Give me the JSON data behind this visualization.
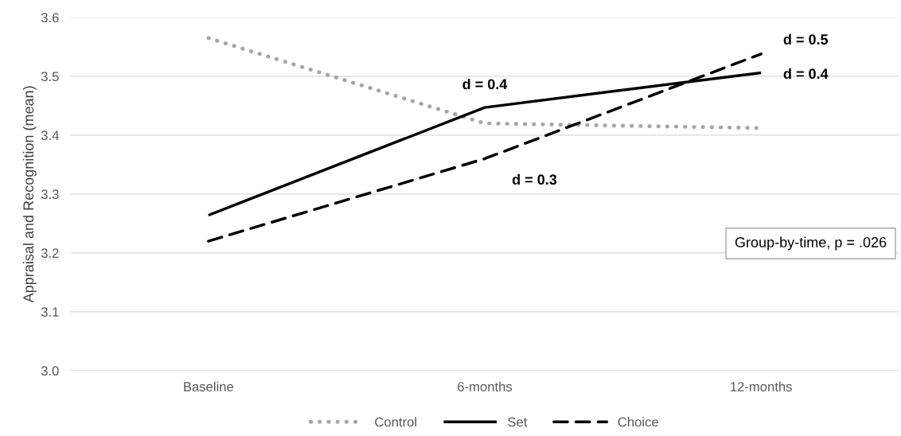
{
  "chart_data": {
    "type": "line",
    "ylabel": "Appraisal and Recognition (mean)",
    "categories": [
      "Baseline",
      "6-months",
      "12-months"
    ],
    "series": [
      {
        "name": "Control",
        "color": "#a6a6a6",
        "line_style": "dotted",
        "values": [
          3.565,
          3.42,
          3.412
        ]
      },
      {
        "name": "Set",
        "color": "#000000",
        "line_style": "solid",
        "values": [
          3.264,
          3.447,
          3.506
        ]
      },
      {
        "name": "Choice",
        "color": "#000000",
        "line_style": "dashed",
        "values": [
          3.22,
          3.36,
          3.538
        ]
      }
    ],
    "ylim": [
      3.0,
      3.6
    ],
    "yticks": [
      {
        "value": 3.0,
        "label": "3.0"
      },
      3.1,
      3.2,
      3.3,
      3.4,
      3.5,
      3.6
    ],
    "grid": "y",
    "legend": "bottom",
    "marker": "none",
    "annotations": [
      {
        "text": "d = 0.4",
        "x": "6-months",
        "y": 3.447
      },
      {
        "text": "d = 0.3",
        "x": "6-months",
        "y": 3.36
      },
      {
        "text": "d = 0.5",
        "x": "12-months",
        "y": 3.538
      },
      {
        "text": "d = 0.4",
        "x": "12-months",
        "y": 3.506
      },
      "Group-by-time, p = .026"
    ]
  }
}
